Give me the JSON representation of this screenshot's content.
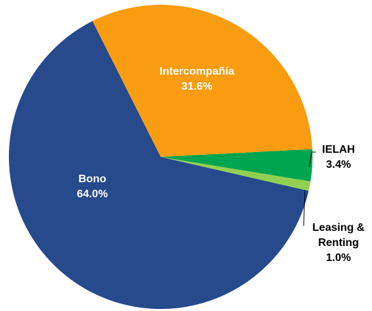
{
  "chart_data": {
    "type": "pie",
    "categories": [
      "Intercompañía",
      "IELAH",
      "Leasing & Renting",
      "Bono"
    ],
    "values": [
      31.6,
      3.4,
      1.0,
      64.0
    ],
    "value_labels": [
      "31.6%",
      "3.4%",
      "1.0%",
      "64.0%"
    ],
    "colors": [
      "#fa9c0f",
      "#00a550",
      "#92d050",
      "#264a8c"
    ]
  }
}
